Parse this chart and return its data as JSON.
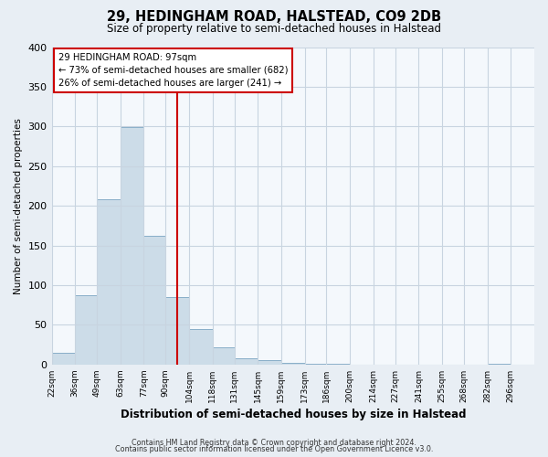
{
  "title": "29, HEDINGHAM ROAD, HALSTEAD, CO9 2DB",
  "subtitle": "Size of property relative to semi-detached houses in Halstead",
  "xlabel": "Distribution of semi-detached houses by size in Halstead",
  "ylabel": "Number of semi-detached properties",
  "bar_color": "#ccdce8",
  "bar_edge_color": "#88aec8",
  "vline_value": 97,
  "vline_color": "#cc0000",
  "annotation_title": "29 HEDINGHAM ROAD: 97sqm",
  "annotation_line1": "← 73% of semi-detached houses are smaller (682)",
  "annotation_line2": "26% of semi-detached houses are larger (241) →",
  "footer_line1": "Contains HM Land Registry data © Crown copyright and database right 2024.",
  "footer_line2": "Contains public sector information licensed under the Open Government Licence v3.0.",
  "bin_edges": [
    22,
    36,
    49,
    63,
    77,
    90,
    104,
    118,
    131,
    145,
    159,
    173,
    186,
    200,
    214,
    227,
    241,
    255,
    268,
    282,
    296
  ],
  "bin_heights": [
    15,
    87,
    208,
    299,
    162,
    85,
    45,
    22,
    8,
    5,
    2,
    1,
    1,
    0,
    0,
    0,
    0,
    0,
    0,
    1
  ],
  "xtick_labels": [
    "22sqm",
    "36sqm",
    "49sqm",
    "63sqm",
    "77sqm",
    "90sqm",
    "104sqm",
    "118sqm",
    "131sqm",
    "145sqm",
    "159sqm",
    "173sqm",
    "186sqm",
    "200sqm",
    "214sqm",
    "227sqm",
    "241sqm",
    "255sqm",
    "268sqm",
    "282sqm",
    "296sqm"
  ],
  "ylim": [
    0,
    400
  ],
  "yticks": [
    0,
    50,
    100,
    150,
    200,
    250,
    300,
    350,
    400
  ],
  "background_color": "#e8eef4",
  "plot_background_color": "#f4f8fc",
  "grid_color": "#c8d4e0"
}
